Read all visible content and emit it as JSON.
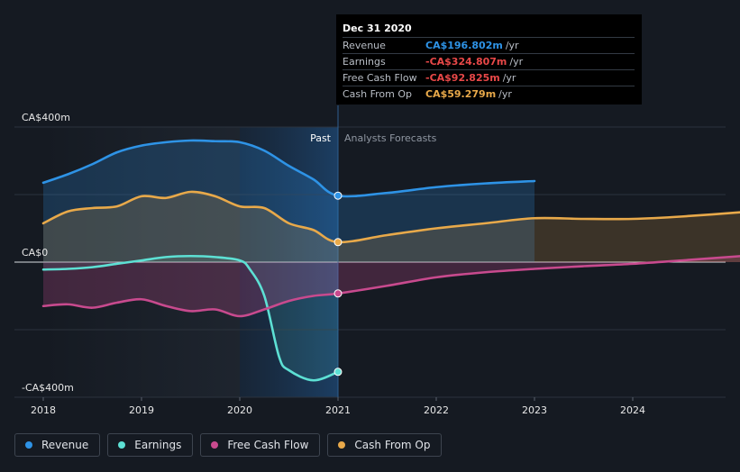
{
  "chart_data": {
    "type": "line",
    "x_ticks": [
      "2018",
      "2019",
      "2020",
      "2021",
      "2022",
      "2023",
      "2024"
    ],
    "y_ticks": [
      "CA$400m",
      "CA$0",
      "-CA$400m"
    ],
    "ylim": [
      -400,
      400
    ],
    "xlim": [
      2018,
      2025.2
    ],
    "past_label": "Past",
    "forecast_label": "Analysts Forecasts",
    "divider_x": 2021,
    "grid": true,
    "legend_position": "bottom-left",
    "series": [
      {
        "name": "Revenue",
        "color": "#2e93e6",
        "x": [
          2018,
          2018.25,
          2018.5,
          2018.75,
          2019,
          2019.25,
          2019.5,
          2019.75,
          2020,
          2020.25,
          2020.5,
          2020.75,
          2021,
          2021.5,
          2022,
          2022.5,
          2023
        ],
        "y": [
          235,
          260,
          290,
          325,
          345,
          355,
          360,
          358,
          355,
          330,
          285,
          245,
          196.8,
          205,
          222,
          233,
          240
        ]
      },
      {
        "name": "Earnings",
        "color": "#5de0d4",
        "x": [
          2018,
          2018.25,
          2018.5,
          2018.75,
          2019,
          2019.25,
          2019.5,
          2019.75,
          2020,
          2020.1,
          2020.25,
          2020.4,
          2020.5,
          2020.75,
          2021
        ],
        "y": [
          -22,
          -20,
          -15,
          -5,
          5,
          15,
          18,
          15,
          5,
          -20,
          -100,
          -280,
          -320,
          -350,
          -324.8
        ]
      },
      {
        "name": "Free Cash Flow",
        "color": "#c84a8e",
        "x": [
          2018,
          2018.25,
          2018.5,
          2018.75,
          2019,
          2019.25,
          2019.5,
          2019.75,
          2020,
          2020.25,
          2020.5,
          2020.75,
          2021,
          2021.5,
          2022,
          2022.5,
          2023,
          2023.5,
          2024,
          2024.5,
          2025.2
        ],
        "y": [
          -130,
          -125,
          -135,
          -120,
          -110,
          -130,
          -145,
          -140,
          -160,
          -140,
          -115,
          -100,
          -92.8,
          -70,
          -45,
          -30,
          -20,
          -12,
          -5,
          5,
          20
        ]
      },
      {
        "name": "Cash From Op",
        "color": "#e8a94a",
        "x": [
          2018,
          2018.25,
          2018.5,
          2018.75,
          2019,
          2019.25,
          2019.5,
          2019.75,
          2020,
          2020.25,
          2020.5,
          2020.75,
          2021,
          2021.5,
          2022,
          2022.5,
          2023,
          2023.5,
          2024,
          2024.5,
          2025.2
        ],
        "y": [
          115,
          150,
          160,
          165,
          195,
          190,
          208,
          195,
          165,
          160,
          115,
          95,
          59.3,
          80,
          100,
          115,
          130,
          128,
          128,
          135,
          150
        ]
      }
    ]
  },
  "tooltip": {
    "date": "Dec 31 2020",
    "unit": "/yr",
    "rows": [
      {
        "label": "Revenue",
        "value": "CA$196.802m",
        "color": "#2e93e6"
      },
      {
        "label": "Earnings",
        "value": "-CA$324.807m",
        "color": "#e84848"
      },
      {
        "label": "Free Cash Flow",
        "value": "-CA$92.825m",
        "color": "#e84848"
      },
      {
        "label": "Cash From Op",
        "value": "CA$59.279m",
        "color": "#e8a94a"
      }
    ]
  },
  "legend": [
    {
      "label": "Revenue",
      "color": "#2e93e6"
    },
    {
      "label": "Earnings",
      "color": "#5de0d4"
    },
    {
      "label": "Free Cash Flow",
      "color": "#c84a8e"
    },
    {
      "label": "Cash From Op",
      "color": "#e8a94a"
    }
  ]
}
